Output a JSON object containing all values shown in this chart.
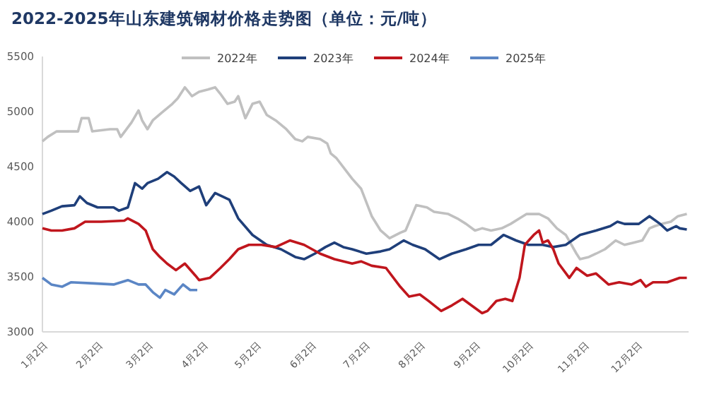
{
  "chart_data": {
    "type": "line",
    "title": "2022-2025年山东建筑钢材价格走势图（单位：元/吨）",
    "xlim": [
      "--01-02",
      "--12-31"
    ],
    "ylim": [
      3000,
      5500
    ],
    "yticks": [
      3000,
      3500,
      4000,
      4500,
      5000,
      5500
    ],
    "xticks": [
      {
        "value": "--01-02",
        "label": "1月2日"
      },
      {
        "value": "--02-02",
        "label": "2月2日"
      },
      {
        "value": "--03-02",
        "label": "3月2日"
      },
      {
        "value": "--04-02",
        "label": "4月2日"
      },
      {
        "value": "--05-02",
        "label": "5月2日"
      },
      {
        "value": "--06-02",
        "label": "6月2日"
      },
      {
        "value": "--07-02",
        "label": "7月2日"
      },
      {
        "value": "--08-02",
        "label": "8月2日"
      },
      {
        "value": "--09-02",
        "label": "9月2日"
      },
      {
        "value": "--10-02",
        "label": "10月2日"
      },
      {
        "value": "--11-02",
        "label": "11月2日"
      },
      {
        "value": "--12-02",
        "label": "12月2日"
      }
    ],
    "legend": "top",
    "series": [
      {
        "name": "2022年",
        "color": "#c0c0c0",
        "x": [
          "--01-02",
          "--01-05",
          "--01-10",
          "--01-22",
          "--01-24",
          "--01-28",
          "--01-30",
          "--02-09",
          "--02-13",
          "--02-15",
          "--02-21",
          "--02-25",
          "--02-27",
          "--03-02",
          "--03-05",
          "--03-10",
          "--03-16",
          "--03-19",
          "--03-23",
          "--03-27",
          "--03-31",
          "--04-05",
          "--04-09",
          "--04-12",
          "--04-16",
          "--04-20",
          "--04-22",
          "--04-26",
          "--04-30",
          "--05-04",
          "--05-08",
          "--05-13",
          "--05-19",
          "--05-24",
          "--05-28",
          "--05-31",
          "--06-07",
          "--06-11",
          "--06-13",
          "--06-16",
          "--06-25",
          "--06-30",
          "--07-06",
          "--07-11",
          "--07-16",
          "--07-22",
          "--07-25",
          "--07-31",
          "--08-06",
          "--08-10",
          "--08-18",
          "--08-23",
          "--08-28",
          "--09-02",
          "--09-06",
          "--09-11",
          "--09-17",
          "--09-22",
          "--09-27",
          "--10-01",
          "--10-08",
          "--10-13",
          "--10-18",
          "--10-23",
          "--10-29",
          "--10-31",
          "--11-05",
          "--11-09",
          "--11-14",
          "--11-20",
          "--11-25",
          "--11-30",
          "--12-05",
          "--12-09",
          "--12-12",
          "--12-16",
          "--12-21",
          "--12-25",
          "--12-30"
        ],
        "values": [
          4730,
          4770,
          4820,
          4820,
          4940,
          4940,
          4820,
          4840,
          4840,
          4770,
          4900,
          5010,
          4920,
          4840,
          4920,
          4990,
          5070,
          5120,
          5220,
          5140,
          5180,
          5200,
          5220,
          5160,
          5070,
          5090,
          5140,
          4940,
          5070,
          5090,
          4970,
          4920,
          4840,
          4750,
          4730,
          4770,
          4750,
          4710,
          4620,
          4580,
          4390,
          4300,
          4050,
          3920,
          3850,
          3900,
          3920,
          4150,
          4130,
          4090,
          4070,
          4030,
          3980,
          3920,
          3940,
          3920,
          3940,
          3980,
          4030,
          4070,
          4070,
          4030,
          3940,
          3880,
          3710,
          3660,
          3680,
          3710,
          3750,
          3830,
          3790,
          3810,
          3830,
          3940,
          3960,
          3980,
          4000,
          4050,
          4070
        ]
      },
      {
        "name": "2023年",
        "color": "#1f3f7a",
        "x": [
          "--01-02",
          "--01-07",
          "--01-13",
          "--01-20",
          "--01-23",
          "--01-27",
          "--02-02",
          "--02-11",
          "--02-14",
          "--02-19",
          "--02-23",
          "--02-27",
          "--03-02",
          "--03-08",
          "--03-13",
          "--03-17",
          "--03-21",
          "--03-26",
          "--03-31",
          "--04-04",
          "--04-09",
          "--04-17",
          "--04-22",
          "--04-30",
          "--05-08",
          "--05-16",
          "--05-24",
          "--05-29",
          "--06-04",
          "--06-10",
          "--06-15",
          "--06-20",
          "--06-25",
          "--07-03",
          "--07-11",
          "--07-16",
          "--07-24",
          "--07-29",
          "--08-05",
          "--08-13",
          "--08-20",
          "--08-28",
          "--09-04",
          "--09-11",
          "--09-18",
          "--09-25",
          "--10-02",
          "--10-10",
          "--10-16",
          "--10-23",
          "--10-31",
          "--11-09",
          "--11-17",
          "--11-21",
          "--11-25",
          "--12-03",
          "--12-09",
          "--12-15",
          "--12-19",
          "--12-24",
          "--12-26",
          "--12-30"
        ],
        "values": [
          4070,
          4100,
          4140,
          4150,
          4230,
          4170,
          4130,
          4130,
          4100,
          4130,
          4350,
          4300,
          4350,
          4390,
          4450,
          4410,
          4350,
          4280,
          4320,
          4150,
          4260,
          4200,
          4030,
          3880,
          3790,
          3750,
          3680,
          3660,
          3710,
          3770,
          3810,
          3770,
          3750,
          3710,
          3730,
          3750,
          3830,
          3790,
          3750,
          3660,
          3710,
          3750,
          3790,
          3790,
          3880,
          3830,
          3790,
          3790,
          3770,
          3790,
          3880,
          3920,
          3960,
          4000,
          3980,
          3980,
          4050,
          3980,
          3920,
          3960,
          3940,
          3930
        ]
      },
      {
        "name": "2024年",
        "color": "#c0161d",
        "x": [
          "--01-02",
          "--01-07",
          "--01-13",
          "--01-20",
          "--01-26",
          "--02-04",
          "--02-17",
          "--02-19",
          "--02-25",
          "--03-01",
          "--03-05",
          "--03-09",
          "--03-13",
          "--03-18",
          "--03-23",
          "--03-29",
          "--03-31",
          "--04-06",
          "--04-12",
          "--04-17",
          "--04-22",
          "--04-28",
          "--05-05",
          "--05-13",
          "--05-21",
          "--05-29",
          "--06-07",
          "--06-15",
          "--06-25",
          "--06-30",
          "--07-06",
          "--07-14",
          "--07-22",
          "--07-27",
          "--08-02",
          "--08-07",
          "--08-14",
          "--08-20",
          "--08-26",
          "--08-31",
          "--09-06",
          "--09-09",
          "--09-14",
          "--09-19",
          "--09-23",
          "--09-27",
          "--09-30",
          "--10-05",
          "--10-08",
          "--10-10",
          "--10-13",
          "--10-16",
          "--10-19",
          "--10-25",
          "--10-29",
          "--11-04",
          "--11-09",
          "--11-16",
          "--11-22",
          "--11-29",
          "--12-04",
          "--12-07",
          "--12-11",
          "--12-19",
          "--12-26",
          "--12-30"
        ],
        "values": [
          3940,
          3920,
          3920,
          3940,
          4000,
          4000,
          4010,
          4030,
          3980,
          3920,
          3750,
          3680,
          3620,
          3560,
          3620,
          3510,
          3470,
          3490,
          3580,
          3660,
          3750,
          3790,
          3790,
          3770,
          3830,
          3790,
          3710,
          3660,
          3620,
          3640,
          3600,
          3580,
          3410,
          3320,
          3340,
          3280,
          3190,
          3240,
          3300,
          3240,
          3170,
          3190,
          3280,
          3300,
          3280,
          3490,
          3790,
          3880,
          3920,
          3810,
          3830,
          3750,
          3620,
          3490,
          3580,
          3510,
          3530,
          3430,
          3450,
          3430,
          3470,
          3410,
          3450,
          3450,
          3490,
          3490
        ]
      },
      {
        "name": "2025年",
        "color": "#5b86c5",
        "x": [
          "--01-02",
          "--01-07",
          "--01-13",
          "--01-18",
          "--01-31",
          "--02-11",
          "--02-19",
          "--02-25",
          "--03-01",
          "--03-05",
          "--03-09",
          "--03-12",
          "--03-17",
          "--03-22",
          "--03-26",
          "--03-30"
        ],
        "values": [
          3490,
          3430,
          3410,
          3450,
          3440,
          3430,
          3470,
          3430,
          3430,
          3360,
          3310,
          3380,
          3340,
          3430,
          3380,
          3380
        ]
      }
    ]
  }
}
